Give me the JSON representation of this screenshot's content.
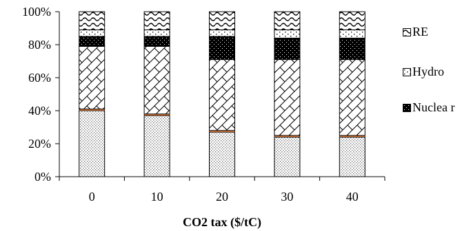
{
  "chart_data": {
    "type": "bar",
    "stacked": true,
    "percent": true,
    "xlabel": "CO2 tax ($/tC)",
    "ylabel": "",
    "categories": [
      "0",
      "10",
      "20",
      "30",
      "40"
    ],
    "yticks": [
      "0%",
      "20%",
      "40%",
      "60%",
      "80%",
      "100%"
    ],
    "ylim": [
      0,
      100
    ],
    "legend_position": "right",
    "series": [
      {
        "key": "s1",
        "values": [
          40,
          37,
          27,
          24,
          24
        ],
        "pattern": "dots",
        "color": "#9a9a9a"
      },
      {
        "key": "s2",
        "values": [
          1,
          1,
          1,
          1,
          1
        ],
        "pattern": "solid",
        "color": "#e07b39"
      },
      {
        "key": "s3",
        "values": [
          38,
          41,
          43,
          46,
          46
        ],
        "pattern": "zigzag",
        "color": "#000000"
      },
      {
        "key": "nuclear",
        "name": "Nuclea r",
        "values": [
          6,
          6,
          14,
          13,
          13
        ],
        "pattern": "dense",
        "color": "#000000"
      },
      {
        "key": "hydro",
        "name": "Hydro",
        "values": [
          4,
          4,
          4,
          5,
          5
        ],
        "pattern": "speck",
        "color": "#000000"
      },
      {
        "key": "re",
        "name": "RE",
        "values": [
          11,
          11,
          11,
          11,
          11
        ],
        "pattern": "wave",
        "color": "#000000"
      }
    ],
    "legend_order": [
      "re",
      "hydro",
      "nuclear"
    ]
  }
}
